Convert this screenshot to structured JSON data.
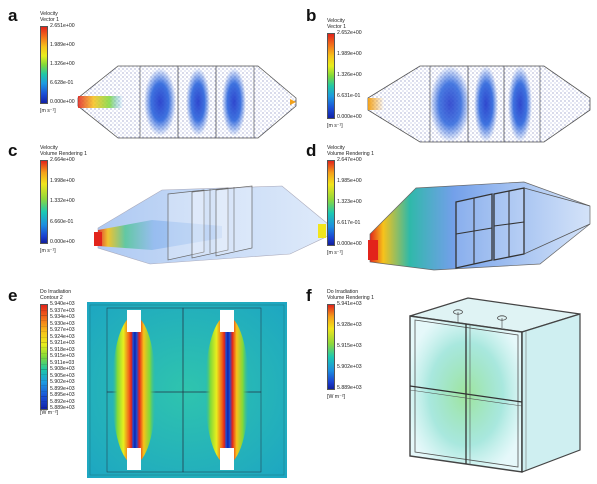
{
  "panels": {
    "a": {
      "letter": "a",
      "legend_title": [
        "Velocity",
        "Vector 1"
      ],
      "ticks": [
        "2.651e+00",
        "1.989e+00",
        "1.326e+00",
        "6.628e-01",
        "0.000e+00"
      ],
      "unit": "[m s⁻¹]"
    },
    "b": {
      "letter": "b",
      "legend_title": [
        "Velocity",
        "Vector 1"
      ],
      "ticks": [
        "2.652e+00",
        "1.989e+00",
        "1.326e+00",
        "6.631e-01",
        "0.000e+00"
      ],
      "unit": "[m s⁻¹]"
    },
    "c": {
      "letter": "c",
      "legend_title": [
        "Velocity",
        "Volume Rendering 1"
      ],
      "ticks": [
        "2.664e+00",
        "1.998e+00",
        "1.332e+00",
        "6.660e-01",
        "0.000e+00"
      ],
      "unit": "[m s⁻¹]"
    },
    "d": {
      "letter": "d",
      "legend_title": [
        "Velocity",
        "Volume Rendering 1"
      ],
      "ticks": [
        "2.647e+00",
        "1.985e+00",
        "1.323e+00",
        "6.617e-01",
        "0.000e+00"
      ],
      "unit": "[m s⁻¹]"
    },
    "e": {
      "letter": "e",
      "legend_title": [
        "Do Irradiation",
        "Contour 2"
      ],
      "ticks": [
        "5.940e+03",
        "5.937e+03",
        "5.934e+03",
        "5.930e+03",
        "5.927e+03",
        "5.924e+03",
        "5.921e+03",
        "5.918e+03",
        "5.915e+03",
        "5.911e+03",
        "5.908e+03",
        "5.905e+03",
        "5.902e+03",
        "5.899e+03",
        "5.895e+03",
        "5.892e+03",
        "5.889e+03"
      ],
      "unit": "[W m⁻²]"
    },
    "f": {
      "letter": "f",
      "legend_title": [
        "Do Irradiation",
        "Volume Rendering 1"
      ],
      "ticks": [
        "5.941e+03",
        "5.928e+03",
        "5.915e+03",
        "5.902e+03",
        "5.889e+03"
      ],
      "unit": "[W m⁻²]"
    }
  },
  "colors": {
    "high": "#e2241b",
    "mid": "#7fd93a",
    "low": "#1222a8",
    "field_bg": "#21b9b0",
    "volume_tint": "#4d8fe8"
  }
}
